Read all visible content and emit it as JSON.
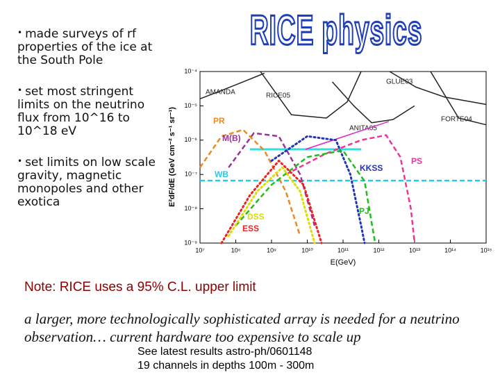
{
  "title": "RICE physics",
  "bullets": [
    "made surveys of rf properties of the ice at the South Pole",
    "set most stringent limits on the neutrino flux from 10^16 to 10^18 eV",
    "set limits on low scale gravity, magnetic monopoles and other exotica"
  ],
  "note": "Note: RICE uses a 95% C.L. upper limit",
  "remark": "a larger, more technologically sophisticated array is needed for a neutrino observation… current hardware too expensive to scale up",
  "footer": [
    "See latest results astro-ph/0601148",
    "19 channels in depths 100m - 300m"
  ],
  "chart_data": {
    "type": "line",
    "x_label": "E(GeV)",
    "y_label": "E²dF/dE (GeV cm⁻² s⁻¹ sr⁻¹)",
    "xlog": true,
    "ylog": true,
    "xlim": [
      10000000.0,
      1000000000000000.0
    ],
    "ylim": [
      1e-09,
      0.0001
    ],
    "xticks": [
      {
        "value": 10000000.0,
        "label": "10⁷"
      },
      {
        "value": 100000000.0,
        "label": "10⁸"
      },
      {
        "value": 1000000000.0,
        "label": "10⁹"
      },
      {
        "value": 10000000000.0,
        "label": "10¹⁰"
      },
      {
        "value": 100000000000.0,
        "label": "10¹¹"
      },
      {
        "value": 1000000000000.0,
        "label": "10¹²"
      },
      {
        "value": 10000000000000.0,
        "label": "10¹³"
      },
      {
        "value": 100000000000000.0,
        "label": "10¹⁴"
      },
      {
        "value": 1000000000000000.0,
        "label": "10¹⁵"
      }
    ],
    "yticks": [
      {
        "value": 1e-09,
        "label": "10⁻⁹"
      },
      {
        "value": 1e-08,
        "label": "10⁻⁸"
      },
      {
        "value": 1e-07,
        "label": "10⁻⁷"
      },
      {
        "value": 1e-06,
        "label": "10⁻⁶"
      },
      {
        "value": 1e-05,
        "label": "10⁻⁵"
      },
      {
        "value": 0.0001,
        "label": "10⁻⁴"
      }
    ],
    "series": [
      {
        "name": "AMANDA",
        "color": "#222222",
        "style": "solid",
        "x": [
          10000000.0,
          40000000.0,
          160000000.0,
          630000000.0
        ],
        "values": [
          1.6e-05,
          2.8e-05,
          5e-05,
          8.9e-05
        ]
      },
      {
        "name": "RICE05",
        "color": "#222222",
        "style": "solid",
        "x": [
          490000000.0,
          3600000000.0,
          34000000000.0,
          130000000000.0,
          320000000000.0
        ],
        "values": [
          0.0001,
          5.5e-06,
          4.4e-06,
          1.3e-05,
          0.0001
        ]
      },
      {
        "name": "ANITA05",
        "color": "#222222",
        "style": "solid",
        "x": [
          50000000000.0,
          200000000000.0,
          630000000000.0,
          2500000000000.0,
          10000000000000.0
        ],
        "values": [
          5e-05,
          1e-05,
          3.2e-06,
          4e-06,
          1e-05
        ]
      },
      {
        "name": "GLUE03",
        "color": "#222222",
        "style": "solid",
        "x": [
          2000000000000.0,
          11000000000000.0,
          69000000000000.0,
          1000000000000000.0
        ],
        "values": [
          0.0001,
          3.5e-05,
          1.8e-05,
          1.1e-05
        ]
      },
      {
        "name": "FORTE04",
        "color": "#222222",
        "style": "solid",
        "x": [
          28000000000000.0,
          170000000000000.0,
          1000000000000000.0
        ],
        "values": [
          0.0001,
          4.4e-06,
          2.8e-06
        ]
      },
      {
        "color": "#33dddd",
        "style": "thick",
        "x": [
          250000000.0,
          320000000000.0
        ],
        "values": [
          5.4e-07,
          5.4e-07
        ]
      },
      {
        "color": "#dd22cc",
        "style": "solid",
        "x": [
          8900000000.0,
          1900000000000.0
        ],
        "values": [
          5.4e-07,
          3.5e-06
        ]
      },
      {
        "name": "WB",
        "color": "#22ccee",
        "style": "dashed",
        "x": [
          10000000.0,
          1000000000000000.0
        ],
        "values": [
          6.6e-08,
          6.6e-08
        ]
      },
      {
        "name": "PR",
        "color": "#ee8822",
        "style": "dashed",
        "x": [
          10000000.0,
          40000000.0,
          160000000.0,
          630000000.0,
          2500000000.0,
          6300000000.0
        ],
        "values": [
          1.6e-07,
          1.3e-06,
          2e-06,
          5e-07,
          3.2e-08,
          1.6e-09
        ]
      },
      {
        "name": "M(B)",
        "color": "#993399",
        "style": "dashed",
        "x": [
          63000000.0,
          320000000.0,
          1600000000.0,
          6300000000.0,
          16000000000.0
        ],
        "values": [
          1.6e-07,
          1.6e-06,
          1.3e-06,
          1e-07,
          3.2e-09
        ]
      },
      {
        "name": "PS",
        "color": "#ee3399",
        "style": "dashed",
        "x": [
          2500000000.0,
          32000000000.0,
          320000000000.0,
          1600000000000.0,
          4000000000000.0,
          7900000000000.0,
          10000000000000.0
        ],
        "values": [
          1e-07,
          4e-07,
          1e-06,
          1.4e-06,
          3.2e-07,
          1e-08,
          1e-09
        ]
      },
      {
        "name": "KKSS",
        "color": "#2233bb",
        "style": "dotted",
        "x": [
          1000000000.0,
          10000000000.0,
          63000000000.0,
          160000000000.0,
          320000000000.0,
          400000000000.0
        ],
        "values": [
          2.5e-07,
          1.3e-06,
          1e-06,
          1e-07,
          3.2e-09,
          1e-09
        ]
      },
      {
        "name": "PJ",
        "color": "#22bb22",
        "style": "dashed",
        "x": [
          100000000.0,
          1000000000.0,
          10000000000.0,
          100000000000.0,
          400000000000.0,
          790000000000.0
        ],
        "values": [
          3.2e-09,
          5e-08,
          3.2e-07,
          5e-07,
          6.3e-08,
          1e-09
        ]
      },
      {
        "name": "DSS",
        "color": "#dddd00",
        "style": "dotted",
        "x": [
          63000000.0,
          400000000.0,
          2000000000.0,
          6300000000.0,
          16000000000.0
        ],
        "values": [
          1.6e-09,
          3.2e-08,
          1.6e-07,
          3.2e-08,
          1e-09
        ]
      },
      {
        "name": "ESS",
        "color": "#ee2222",
        "style": "dotted",
        "x": [
          40000000.0,
          250000000.0,
          1600000000.0,
          7900000000.0,
          25000000000.0
        ],
        "values": [
          1e-09,
          2.5e-08,
          2.5e-07,
          5e-08,
          1e-09
        ]
      }
    ]
  }
}
